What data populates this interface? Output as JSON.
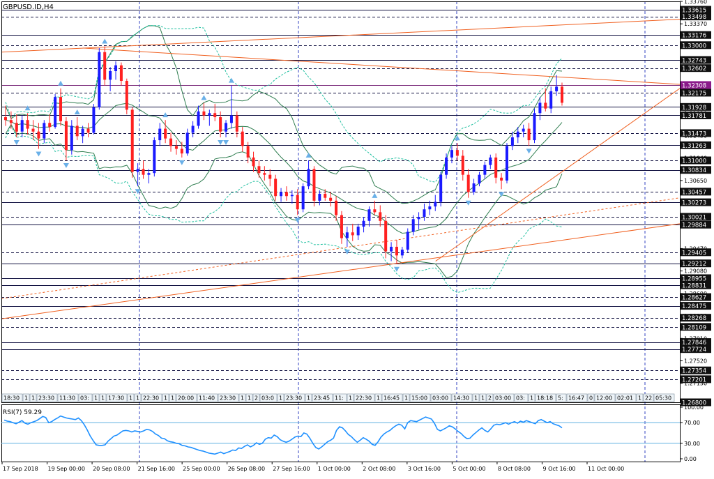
{
  "chart_data": {
    "type": "candlestick",
    "title": "GBPUSD.ID,H4",
    "symbol": "GBPUSD.ID",
    "timeframe": "H4",
    "ylim": [
      1.268,
      1.3376
    ],
    "price_ticks": [
      "1.33760",
      "1.33370",
      "1.32980",
      "1.32600",
      "1.32210",
      "1.31820",
      "1.31430",
      "1.31040",
      "1.30650",
      "1.30260",
      "1.29870",
      "1.29470",
      "1.29080",
      "1.28690",
      "1.28300",
      "1.27910",
      "1.27520",
      "1.27130"
    ],
    "price_levels": [
      {
        "label": "1.33615",
        "value": 1.33615,
        "style": "solid",
        "highlight": false
      },
      {
        "label": "1.33498",
        "value": 1.33498,
        "style": "dashed",
        "highlight": false
      },
      {
        "label": "1.33176",
        "value": 1.33176,
        "style": "solid",
        "highlight": false
      },
      {
        "label": "1.33000",
        "value": 1.33,
        "style": "dashed",
        "highlight": false
      },
      {
        "label": "1.32743",
        "value": 1.32743,
        "style": "solid",
        "highlight": false
      },
      {
        "label": "1.32602",
        "value": 1.32602,
        "style": "dashed",
        "highlight": false
      },
      {
        "label": "1.32308",
        "value": 1.32308,
        "style": "solid",
        "highlight": true
      },
      {
        "label": "1.32175",
        "value": 1.32175,
        "style": "dashed",
        "highlight": false
      },
      {
        "label": "1.31928",
        "value": 1.31928,
        "style": "solid",
        "highlight": false
      },
      {
        "label": "1.31781",
        "value": 1.31781,
        "style": "solid",
        "highlight": false
      },
      {
        "label": "1.31473",
        "value": 1.31473,
        "style": "dashed",
        "highlight": false
      },
      {
        "label": "1.31263",
        "value": 1.31263,
        "style": "solid",
        "highlight": false
      },
      {
        "label": "1.31000",
        "value": 1.31,
        "style": "dashed",
        "highlight": false
      },
      {
        "label": "1.30834",
        "value": 1.30834,
        "style": "solid",
        "highlight": false
      },
      {
        "label": "1.30457",
        "value": 1.30457,
        "style": "dashed",
        "highlight": false
      },
      {
        "label": "1.30273",
        "value": 1.30273,
        "style": "solid",
        "highlight": false
      },
      {
        "label": "1.30021",
        "value": 1.30021,
        "style": "dashed",
        "highlight": false
      },
      {
        "label": "1.29884",
        "value": 1.29884,
        "style": "solid",
        "highlight": false
      },
      {
        "label": "1.29405",
        "value": 1.29405,
        "style": "dashed",
        "highlight": false
      },
      {
        "label": "1.29212",
        "value": 1.29212,
        "style": "solid",
        "highlight": false
      },
      {
        "label": "1.28955",
        "value": 1.28955,
        "style": "solid",
        "highlight": false
      },
      {
        "label": "1.28831",
        "value": 1.28831,
        "style": "solid",
        "highlight": false
      },
      {
        "label": "1.28627",
        "value": 1.28627,
        "style": "dashed",
        "highlight": false
      },
      {
        "label": "1.28475",
        "value": 1.28475,
        "style": "solid",
        "highlight": false
      },
      {
        "label": "1.28268",
        "value": 1.28268,
        "style": "dashed",
        "highlight": false
      },
      {
        "label": "1.28109",
        "value": 1.28109,
        "style": "dashed",
        "highlight": false
      },
      {
        "label": "1.27846",
        "value": 1.27846,
        "style": "solid",
        "highlight": false
      },
      {
        "label": "1.27724",
        "value": 1.27724,
        "style": "solid",
        "highlight": false
      },
      {
        "label": "1.27354",
        "value": 1.27354,
        "style": "dashed",
        "highlight": false
      },
      {
        "label": "1.27201",
        "value": 1.27201,
        "style": "dashed",
        "highlight": false
      },
      {
        "label": "1.26800",
        "value": 1.268,
        "style": "solid",
        "highlight": false
      }
    ],
    "time_axis_labels": [
      "17 Sep 2018",
      "19 Sep 00:00",
      "20 Sep 08:00",
      "21 Sep 16:00",
      "25 Sep 00:00",
      "26 Sep 08:00",
      "27 Sep 16:00",
      "1 Oct 00:00",
      "2 Oct 08:00",
      "3 Oct 16:00",
      "5 Oct 00:00",
      "8 Oct 08:00",
      "9 Oct 16:00",
      "11 Oct 00:00"
    ],
    "session_strip": [
      "18:30",
      "1",
      "1",
      "23:30",
      "11:30",
      "03:",
      "1",
      "1",
      "17:30",
      "1",
      "1",
      "22:30",
      "1",
      "1",
      "20:00",
      "11:40",
      "23:30",
      "1",
      "1",
      "2",
      "03:0",
      "1",
      "23:30",
      "1",
      "23:45",
      "11:",
      "1",
      "22:30",
      "1",
      "16:45",
      "1",
      "15:00",
      "03:00",
      "14:30",
      "1",
      "1",
      "2",
      "03:00",
      "03:",
      "1",
      "18:18",
      "5:",
      "16:47",
      "0",
      "12:00",
      "02:01",
      "1",
      "22",
      "05:30"
    ],
    "candles": [
      [
        1.3175,
        1.3195,
        1.316,
        1.317
      ],
      [
        1.317,
        1.3185,
        1.3155,
        1.3165
      ],
      [
        1.3165,
        1.318,
        1.314,
        1.315
      ],
      [
        1.315,
        1.3178,
        1.314,
        1.317
      ],
      [
        1.317,
        1.3182,
        1.3145,
        1.3155
      ],
      [
        1.3155,
        1.317,
        1.3135,
        1.315
      ],
      [
        1.315,
        1.3165,
        1.312,
        1.3138
      ],
      [
        1.3138,
        1.317,
        1.313,
        1.3165
      ],
      [
        1.3165,
        1.318,
        1.315,
        1.3158
      ],
      [
        1.3158,
        1.3215,
        1.3155,
        1.321
      ],
      [
        1.321,
        1.3225,
        1.316,
        1.3168
      ],
      [
        1.3168,
        1.3175,
        1.31,
        1.3118
      ],
      [
        1.3118,
        1.317,
        1.311,
        1.316
      ],
      [
        1.316,
        1.3175,
        1.3135,
        1.3142
      ],
      [
        1.3142,
        1.316,
        1.313,
        1.3155
      ],
      [
        1.3155,
        1.3165,
        1.314,
        1.3148
      ],
      [
        1.3148,
        1.3198,
        1.3145,
        1.3192
      ],
      [
        1.3192,
        1.3295,
        1.3188,
        1.3288
      ],
      [
        1.3288,
        1.3298,
        1.323,
        1.324
      ],
      [
        1.324,
        1.3262,
        1.322,
        1.3255
      ],
      [
        1.3255,
        1.3272,
        1.324,
        1.3265
      ],
      [
        1.3265,
        1.327,
        1.323,
        1.3238
      ],
      [
        1.3238,
        1.3242,
        1.318,
        1.3188
      ],
      [
        1.3188,
        1.3192,
        1.307,
        1.308
      ],
      [
        1.308,
        1.3095,
        1.3055,
        1.3085
      ],
      [
        1.3085,
        1.31,
        1.3068,
        1.3075
      ],
      [
        1.3075,
        1.3085,
        1.306,
        1.3078
      ],
      [
        1.3078,
        1.314,
        1.3072,
        1.3135
      ],
      [
        1.3135,
        1.3165,
        1.3125,
        1.3155
      ],
      [
        1.3155,
        1.317,
        1.313,
        1.3138
      ],
      [
        1.3138,
        1.3148,
        1.3115,
        1.3125
      ],
      [
        1.3125,
        1.3135,
        1.311,
        1.312
      ],
      [
        1.312,
        1.3132,
        1.3105,
        1.3112
      ],
      [
        1.3112,
        1.3155,
        1.3108,
        1.3148
      ],
      [
        1.3148,
        1.3168,
        1.314,
        1.316
      ],
      [
        1.316,
        1.3195,
        1.3155,
        1.3185
      ],
      [
        1.3185,
        1.32,
        1.317,
        1.3178
      ],
      [
        1.3178,
        1.3188,
        1.316,
        1.3182
      ],
      [
        1.3182,
        1.3198,
        1.3168,
        1.3175
      ],
      [
        1.3175,
        1.3185,
        1.314,
        1.315
      ],
      [
        1.315,
        1.317,
        1.314,
        1.3165
      ],
      [
        1.3165,
        1.323,
        1.3155,
        1.3178
      ],
      [
        1.3178,
        1.3185,
        1.314,
        1.315
      ],
      [
        1.315,
        1.3158,
        1.3115,
        1.3125
      ],
      [
        1.3125,
        1.3132,
        1.3095,
        1.3105
      ],
      [
        1.3105,
        1.3115,
        1.308,
        1.309
      ],
      [
        1.309,
        1.31,
        1.307,
        1.3078
      ],
      [
        1.3078,
        1.309,
        1.3065,
        1.3075
      ],
      [
        1.3075,
        1.3085,
        1.3055,
        1.3068
      ],
      [
        1.3068,
        1.3075,
        1.303,
        1.3038
      ],
      [
        1.3038,
        1.3052,
        1.3028,
        1.3045
      ],
      [
        1.3045,
        1.3055,
        1.303,
        1.3038
      ],
      [
        1.3038,
        1.3048,
        1.3025,
        1.304
      ],
      [
        1.304,
        1.305,
        1.3005,
        1.3015
      ],
      [
        1.3015,
        1.306,
        1.301,
        1.3055
      ],
      [
        1.3055,
        1.31,
        1.305,
        1.3085
      ],
      [
        1.3085,
        1.309,
        1.302,
        1.303
      ],
      [
        1.303,
        1.3048,
        1.3022,
        1.3042
      ],
      [
        1.3042,
        1.305,
        1.303,
        1.3035
      ],
      [
        1.3035,
        1.3045,
        1.302,
        1.303
      ],
      [
        1.303,
        1.3038,
        1.2995,
        1.3005
      ],
      [
        1.3005,
        1.3012,
        1.2955,
        1.2965
      ],
      [
        1.2965,
        1.2985,
        1.295,
        1.2975
      ],
      [
        1.2975,
        1.299,
        1.296,
        1.297
      ],
      [
        1.297,
        1.299,
        1.2962,
        1.2985
      ],
      [
        1.2985,
        1.3002,
        1.2975,
        1.2995
      ],
      [
        1.2995,
        1.302,
        1.2985,
        1.3015
      ],
      [
        1.3015,
        1.303,
        1.3005,
        1.301
      ],
      [
        1.301,
        1.3022,
        1.2985,
        1.2995
      ],
      [
        1.2995,
        1.3005,
        1.293,
        1.2942
      ],
      [
        1.2942,
        1.2958,
        1.2925,
        1.295
      ],
      [
        1.295,
        1.2962,
        1.292,
        1.2935
      ],
      [
        1.2935,
        1.295,
        1.293,
        1.2945
      ],
      [
        1.2945,
        1.2982,
        1.294,
        1.2976
      ],
      [
        1.2976,
        1.3005,
        1.297,
        1.2998
      ],
      [
        1.2998,
        1.301,
        1.298,
        1.3002
      ],
      [
        1.3002,
        1.3025,
        1.2995,
        1.3015
      ],
      [
        1.3015,
        1.303,
        1.3005,
        1.302
      ],
      [
        1.302,
        1.304,
        1.3012,
        1.3028
      ],
      [
        1.3028,
        1.308,
        1.302,
        1.3075
      ],
      [
        1.3075,
        1.3112,
        1.3068,
        1.3105
      ],
      [
        1.3105,
        1.3125,
        1.3095,
        1.3118
      ],
      [
        1.3118,
        1.313,
        1.31,
        1.3108
      ],
      [
        1.3108,
        1.3118,
        1.3065,
        1.3075
      ],
      [
        1.3075,
        1.3085,
        1.3035,
        1.3045
      ],
      [
        1.3045,
        1.3068,
        1.304,
        1.306
      ],
      [
        1.306,
        1.308,
        1.3055,
        1.3075
      ],
      [
        1.3075,
        1.3098,
        1.3068,
        1.3092
      ],
      [
        1.3092,
        1.311,
        1.3085,
        1.3105
      ],
      [
        1.3105,
        1.3112,
        1.306,
        1.307
      ],
      [
        1.307,
        1.3078,
        1.305,
        1.3065
      ],
      [
        1.3065,
        1.313,
        1.306,
        1.3125
      ],
      [
        1.3125,
        1.315,
        1.3118,
        1.314
      ],
      [
        1.314,
        1.3158,
        1.313,
        1.315
      ],
      [
        1.315,
        1.3162,
        1.314,
        1.3155
      ],
      [
        1.3155,
        1.3165,
        1.3125,
        1.3135
      ],
      [
        1.3135,
        1.319,
        1.313,
        1.3182
      ],
      [
        1.3182,
        1.321,
        1.317,
        1.32
      ],
      [
        1.32,
        1.3225,
        1.3185,
        1.319
      ],
      [
        1.319,
        1.3228,
        1.3182,
        1.322
      ],
      [
        1.322,
        1.3248,
        1.3212,
        1.3228
      ],
      [
        1.3228,
        1.3235,
        1.3195,
        1.32
      ]
    ],
    "trendlines": [
      {
        "style": "solid",
        "points": [
          [
            "2018-09-20",
            1.3295
          ],
          [
            "2018-10-12",
            1.3232
          ]
        ]
      },
      {
        "style": "solid",
        "points": [
          [
            "2018-09-17",
            1.3288
          ],
          [
            "2018-10-12",
            1.3345
          ]
        ]
      },
      {
        "style": "solid",
        "points": [
          [
            "2018-10-03",
            1.2925
          ],
          [
            "2018-10-12",
            1.3225
          ]
        ]
      },
      {
        "style": "solid",
        "points": [
          [
            "2018-09-17",
            1.2825
          ],
          [
            "2018-10-12",
            1.299
          ]
        ]
      },
      {
        "style": "dashed",
        "points": [
          [
            "2018-09-17",
            1.286
          ],
          [
            "2018-10-12",
            1.3035
          ]
        ]
      }
    ],
    "indicator": {
      "name": "RSI(7)",
      "value": "59.29",
      "levels": [
        70,
        30
      ],
      "ticks": [
        "100.00",
        "70.00",
        "30.00",
        "0.00"
      ],
      "ylim": [
        0,
        100
      ],
      "values": [
        75,
        73,
        72,
        70,
        68,
        71,
        74,
        69,
        67,
        70,
        72,
        74,
        78,
        82,
        80,
        70,
        72,
        76,
        79,
        83,
        81,
        79,
        78,
        77,
        76,
        79,
        74,
        66,
        56,
        44,
        35,
        27,
        26,
        26,
        27,
        34,
        39,
        44,
        46,
        50,
        54,
        55,
        54,
        52,
        54,
        53,
        52,
        54,
        57,
        56,
        53,
        48,
        45,
        40,
        39,
        35,
        33,
        32,
        30,
        29,
        26,
        25,
        23,
        22,
        20,
        18,
        16,
        15,
        13,
        11,
        10,
        9,
        11,
        13,
        10,
        12,
        14,
        17,
        16,
        21,
        20,
        24,
        27,
        23,
        26,
        31,
        28,
        30,
        38,
        41,
        40,
        46,
        43,
        37,
        34,
        32,
        34,
        38,
        42,
        44,
        43,
        50,
        48,
        40,
        30,
        22,
        19,
        23,
        28,
        33,
        36,
        40,
        55,
        62,
        60,
        54,
        47,
        43,
        37,
        32,
        36,
        41,
        38,
        34,
        28,
        26,
        33,
        42,
        48,
        52,
        55,
        60,
        64,
        67,
        65,
        58,
        70,
        74,
        73,
        72,
        75,
        78,
        81,
        79,
        77,
        69,
        57,
        54,
        57,
        60,
        64,
        62,
        58,
        53,
        49,
        43,
        39,
        40,
        46,
        51,
        56,
        60,
        55,
        52,
        58,
        65,
        67,
        66,
        68,
        70,
        67,
        70,
        72,
        69,
        73,
        71,
        74,
        72,
        70,
        68,
        74,
        76,
        73,
        70,
        72,
        68,
        66,
        64,
        60
      ]
    }
  }
}
